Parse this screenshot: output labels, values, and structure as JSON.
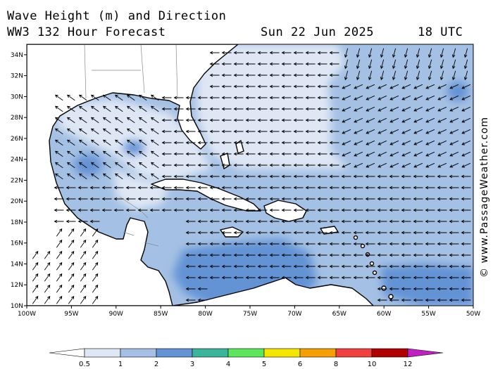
{
  "title": {
    "line1": "Wave Height (m) and Direction",
    "line2": "WW3 132 Hour Forecast",
    "date": "Sun 22 Jun 2025",
    "time": "18 UTC"
  },
  "watermark": "© www.PassageWeather.com",
  "map": {
    "lon_range": [
      -100,
      -50
    ],
    "lat_range": [
      10,
      35
    ],
    "lon_ticks": [
      "100W",
      "95W",
      "90W",
      "85W",
      "80W",
      "75W",
      "70W",
      "65W",
      "60W",
      "55W",
      "50W"
    ],
    "lat_ticks": [
      "10N",
      "12N",
      "14N",
      "16N",
      "18N",
      "20N",
      "22N",
      "24N",
      "26N",
      "28N",
      "30N",
      "32N",
      "34N"
    ]
  },
  "legend": {
    "unit": "m",
    "labels": [
      "0.5",
      "1",
      "2",
      "3",
      "4",
      "5",
      "6",
      "8",
      "10",
      "12"
    ],
    "colors": [
      "#ffffff",
      "#dfe7f5",
      "#a4c0e4",
      "#6493d5",
      "#3ab59a",
      "#5ce65c",
      "#f5e600",
      "#f5a000",
      "#f04040",
      "#b00000",
      "#c020c0"
    ]
  },
  "colors": {
    "ocean_low": "#dfe7f5",
    "ocean_mid": "#a4c0e4",
    "ocean_high": "#6493d5",
    "land": "#ffffff",
    "coast": "#000000",
    "border": "#888888",
    "arrow": "#000000"
  }
}
